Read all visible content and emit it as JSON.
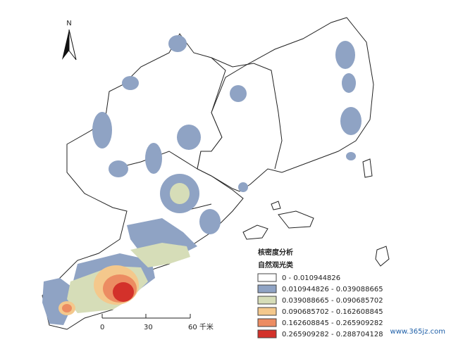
{
  "north_arrow": {
    "label": "N"
  },
  "legend": {
    "title": "核密度分析",
    "subtitle": "自然观光类",
    "items": [
      {
        "label": "0 - 0.010944826",
        "color": "#ffffff"
      },
      {
        "label": "0.010944826 - 0.039088665",
        "color": "#8fa3c4"
      },
      {
        "label": "0.039088665 - 0.090685702",
        "color": "#d6ddb8"
      },
      {
        "label": "0.090685702 - 0.162608845",
        "color": "#f4c88c"
      },
      {
        "label": "0.162608845 - 0.265909282",
        "color": "#ec8c62"
      },
      {
        "label": "0.265909282 - 0.288704128",
        "color": "#d3312a"
      }
    ]
  },
  "scale_bar": {
    "labels": [
      "0",
      "30",
      "60 千米"
    ]
  },
  "watermark": "www.365jz.com"
}
